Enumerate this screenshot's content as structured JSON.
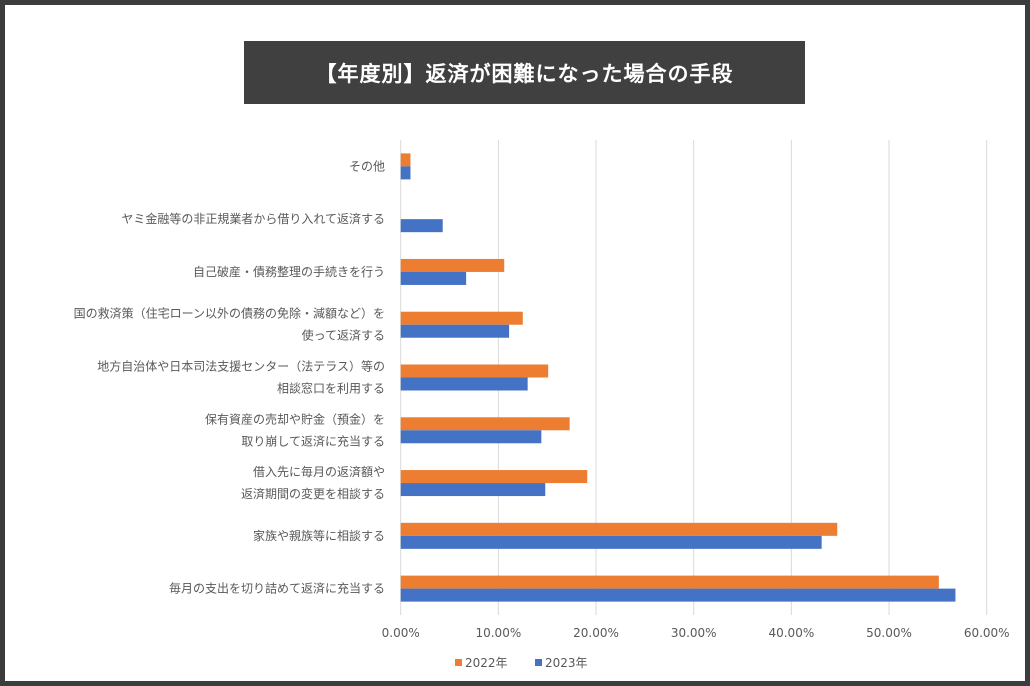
{
  "chart_data": {
    "type": "bar",
    "orientation": "horizontal",
    "title": "【年度別】返済が困難になった場合の手段",
    "categories": [
      [
        "その他"
      ],
      [
        "ヤミ金融等の非正規業者から借り入れて返済する"
      ],
      [
        "自己破産・債務整理の手続きを行う"
      ],
      [
        "国の救済策（住宅ローン以外の債務の免除・減額など）を",
        "使って返済する"
      ],
      [
        "地方自治体や日本司法支援センター（法テラス）等の",
        "相談窓口を利用する"
      ],
      [
        "保有資産の売却や貯金（預金）を",
        "取り崩して返済に充当する"
      ],
      [
        "借入先に毎月の返済額や",
        "返済期間の変更を相談する"
      ],
      [
        "家族や親族等に相談する"
      ],
      [
        "毎月の支出を切り詰めて返済に充当する"
      ]
    ],
    "series": [
      {
        "name": "2022年",
        "color": "#ed7d31",
        "values": [
          1.0,
          0,
          10.6,
          12.5,
          15.1,
          17.3,
          19.1,
          44.7,
          55.1
        ]
      },
      {
        "name": "2023年",
        "color": "#4472c4",
        "values": [
          1.0,
          4.3,
          6.7,
          11.1,
          13.0,
          14.4,
          14.8,
          43.1,
          56.8
        ]
      }
    ],
    "xlim": [
      0,
      60
    ],
    "xticks": [
      "0.00%",
      "10.00%",
      "20.00%",
      "30.00%",
      "40.00%",
      "50.00%",
      "60.00%"
    ],
    "grid": true,
    "legend": "bottom"
  }
}
